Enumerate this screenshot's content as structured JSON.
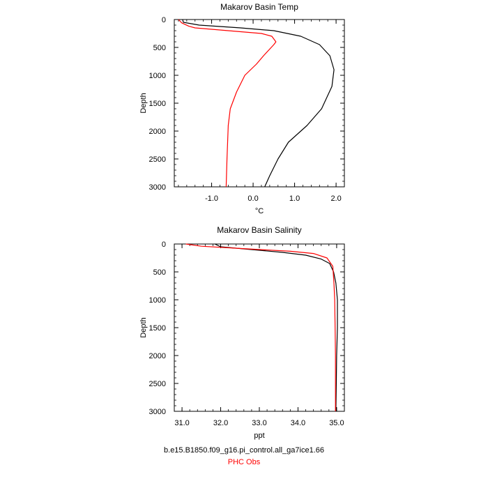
{
  "chart_data": [
    {
      "type": "line",
      "title": "Makarov Basin Temp",
      "xlabel": "°C",
      "ylabel": "Depth",
      "xlim": [
        -1.9,
        2.2
      ],
      "ylim": [
        3000,
        0
      ],
      "y_inverted": true,
      "xticks": [
        -1.0,
        0.0,
        1.0,
        2.0
      ],
      "xtick_labels": [
        "-1.0",
        "0.0",
        "1.0",
        "2.0"
      ],
      "yticks": [
        0,
        500,
        1000,
        1500,
        2000,
        2500,
        3000
      ],
      "ytick_labels": [
        "0",
        "500",
        "1000",
        "1500",
        "2000",
        "2500",
        "3000"
      ],
      "grid": false,
      "series": [
        {
          "name": "b.e15.B1850.f09_g16.pi_control.all_ga7ice1.66",
          "color": "#000000",
          "points": [
            {
              "x": -1.7,
              "y": 0
            },
            {
              "x": -1.68,
              "y": 50
            },
            {
              "x": -1.3,
              "y": 100
            },
            {
              "x": -0.3,
              "y": 150
            },
            {
              "x": 0.5,
              "y": 200
            },
            {
              "x": 1.15,
              "y": 300
            },
            {
              "x": 1.6,
              "y": 450
            },
            {
              "x": 1.85,
              "y": 650
            },
            {
              "x": 1.95,
              "y": 900
            },
            {
              "x": 1.9,
              "y": 1200
            },
            {
              "x": 1.65,
              "y": 1600
            },
            {
              "x": 1.3,
              "y": 1900
            },
            {
              "x": 0.85,
              "y": 2200
            },
            {
              "x": 0.6,
              "y": 2500
            },
            {
              "x": 0.4,
              "y": 2800
            },
            {
              "x": 0.28,
              "y": 3000
            }
          ]
        },
        {
          "name": "PHC Obs",
          "color": "#ff0000",
          "points": [
            {
              "x": -1.8,
              "y": 0
            },
            {
              "x": -1.72,
              "y": 60
            },
            {
              "x": -1.55,
              "y": 120
            },
            {
              "x": -1.4,
              "y": 150
            },
            {
              "x": -0.6,
              "y": 200
            },
            {
              "x": 0.2,
              "y": 250
            },
            {
              "x": 0.45,
              "y": 300
            },
            {
              "x": 0.55,
              "y": 400
            },
            {
              "x": 0.5,
              "y": 450
            },
            {
              "x": 0.25,
              "y": 650
            },
            {
              "x": 0.08,
              "y": 800
            },
            {
              "x": -0.2,
              "y": 1000
            },
            {
              "x": -0.4,
              "y": 1300
            },
            {
              "x": -0.55,
              "y": 1600
            },
            {
              "x": -0.6,
              "y": 1900
            },
            {
              "x": -0.63,
              "y": 2500
            },
            {
              "x": -0.65,
              "y": 3000
            }
          ]
        }
      ]
    },
    {
      "type": "line",
      "title": "Makarov Basin Salinity",
      "xlabel": "ppt",
      "ylabel": "Depth",
      "xlim": [
        30.8,
        35.2
      ],
      "ylim": [
        3000,
        0
      ],
      "y_inverted": true,
      "xticks": [
        31.0,
        32.0,
        33.0,
        34.0,
        35.0
      ],
      "xtick_labels": [
        "31.0",
        "32.0",
        "33.0",
        "34.0",
        "35.0"
      ],
      "yticks": [
        0,
        500,
        1000,
        1500,
        2000,
        2500,
        3000
      ],
      "ytick_labels": [
        "0",
        "500",
        "1000",
        "1500",
        "2000",
        "2500",
        "3000"
      ],
      "grid": false,
      "series": [
        {
          "name": "b.e15.B1850.f09_g16.pi_control.all_ga7ice1.66",
          "color": "#000000",
          "points": [
            {
              "x": 31.85,
              "y": 0
            },
            {
              "x": 32.0,
              "y": 50
            },
            {
              "x": 32.8,
              "y": 100
            },
            {
              "x": 33.6,
              "y": 150
            },
            {
              "x": 34.2,
              "y": 200
            },
            {
              "x": 34.6,
              "y": 270
            },
            {
              "x": 34.82,
              "y": 350
            },
            {
              "x": 34.92,
              "y": 500
            },
            {
              "x": 34.98,
              "y": 700
            },
            {
              "x": 35.02,
              "y": 1000
            },
            {
              "x": 35.02,
              "y": 1500
            },
            {
              "x": 35.0,
              "y": 2000
            },
            {
              "x": 34.99,
              "y": 2500
            },
            {
              "x": 34.98,
              "y": 3000
            }
          ]
        },
        {
          "name": "PHC Obs",
          "color": "#ff0000",
          "points": [
            {
              "x": 31.1,
              "y": 0
            },
            {
              "x": 31.5,
              "y": 40
            },
            {
              "x": 32.5,
              "y": 80
            },
            {
              "x": 33.8,
              "y": 130
            },
            {
              "x": 34.4,
              "y": 170
            },
            {
              "x": 34.75,
              "y": 250
            },
            {
              "x": 34.9,
              "y": 400
            },
            {
              "x": 34.93,
              "y": 700
            },
            {
              "x": 34.95,
              "y": 1000
            },
            {
              "x": 34.96,
              "y": 1500
            },
            {
              "x": 34.97,
              "y": 2000
            },
            {
              "x": 34.97,
              "y": 3000
            }
          ]
        }
      ]
    }
  ],
  "footer": {
    "model_label": "b.e15.B1850.f09_g16.pi_control.all_ga7ice1.66",
    "obs_label": "PHC Obs",
    "model_color": "#000000",
    "obs_color": "#ff0000"
  }
}
